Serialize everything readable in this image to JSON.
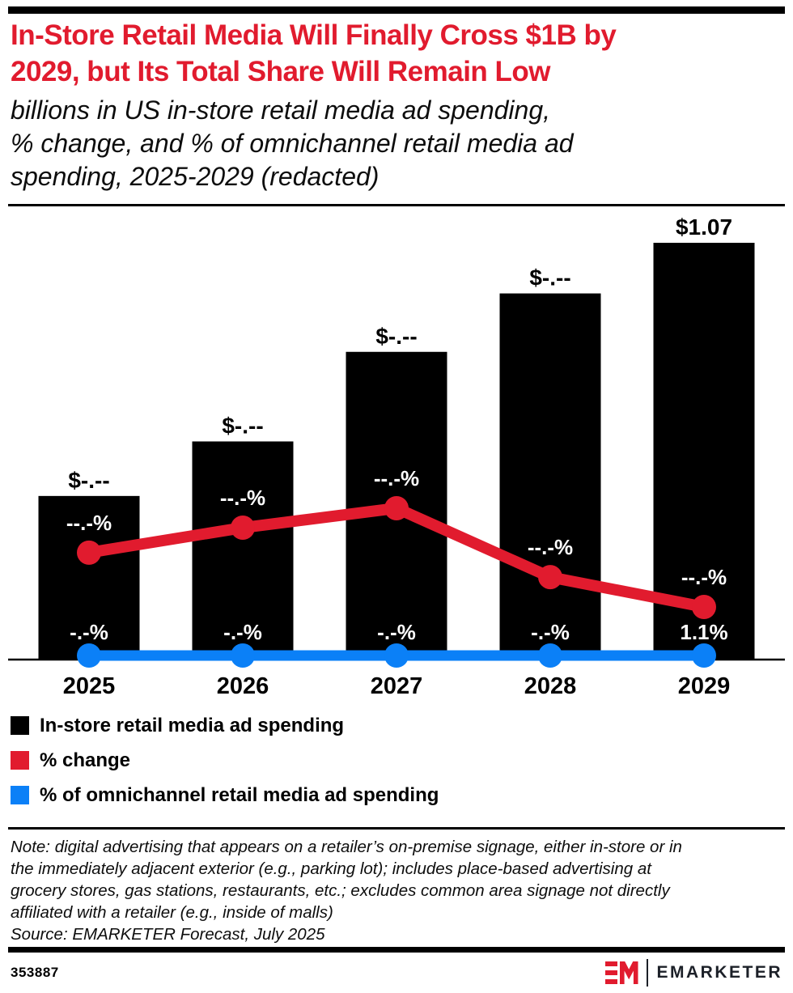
{
  "header": {
    "title": "In-Store Retail Media Will Finally Cross $1B by\n2029, but Its Total Share Will Remain Low",
    "title_color": "#e11b2e",
    "subtitle": "billions in US in-store retail media ad spending,\n% change, and % of omnichannel retail media ad\nspending, 2025-2029 (redacted)"
  },
  "chart_data": {
    "type": "bar",
    "title": "In-store retail media ad spending with % change and % of omnichannel retail media ad spending",
    "categories": [
      "2025",
      "2026",
      "2027",
      "2028",
      "2029"
    ],
    "series": [
      {
        "name": "In-store retail media ad spending",
        "type": "bar",
        "color": "#000000",
        "values_est_billions": [
          0.42,
          0.56,
          0.79,
          0.94,
          1.07
        ],
        "labels": [
          "$-.--",
          "$-.--",
          "$-.--",
          "$-.--",
          "$1.07"
        ],
        "label_color": "#000000"
      },
      {
        "name": "% change",
        "type": "line",
        "color": "#e11b2e",
        "values_redacted": true,
        "rel_heights": [
          0.236,
          0.291,
          0.334,
          0.182,
          0.116
        ],
        "labels": [
          "--.-%",
          "--.-%",
          "--.-%",
          "--.-%",
          "--.-%"
        ],
        "label_color": "#ffffff"
      },
      {
        "name": "% of omnichannel retail media ad spending",
        "type": "line",
        "color": "#0b80f7",
        "values_redacted": true,
        "rel_heights": [
          0.009,
          0.009,
          0.009,
          0.009,
          0.009
        ],
        "labels": [
          "-.-%",
          "-.-%",
          "-.-%",
          "-.-%",
          "1.1%"
        ],
        "label_color": "#ffffff"
      }
    ],
    "ylim_billions": [
      0,
      1.25
    ],
    "grid": false,
    "legend_position": "bottom-left",
    "axis_color": "#000000"
  },
  "note": {
    "text": "Note: digital advertising that appears on a retailer’s on-premise signage, either in-store or in\nthe immediately adjacent exterior (e.g., parking lot); includes place-based advertising at\ngrocery stores, gas stations, restaurants, etc.; excludes common area signage not directly\naffiliated with a retailer (e.g., inside of malls)",
    "source": "Source: EMARKETER Forecast, July 2025"
  },
  "footer": {
    "chart_id": "353887",
    "brand_name": "EMARKETER",
    "brand_red": "#e11b2e",
    "brand_dark": "#1c2028"
  }
}
